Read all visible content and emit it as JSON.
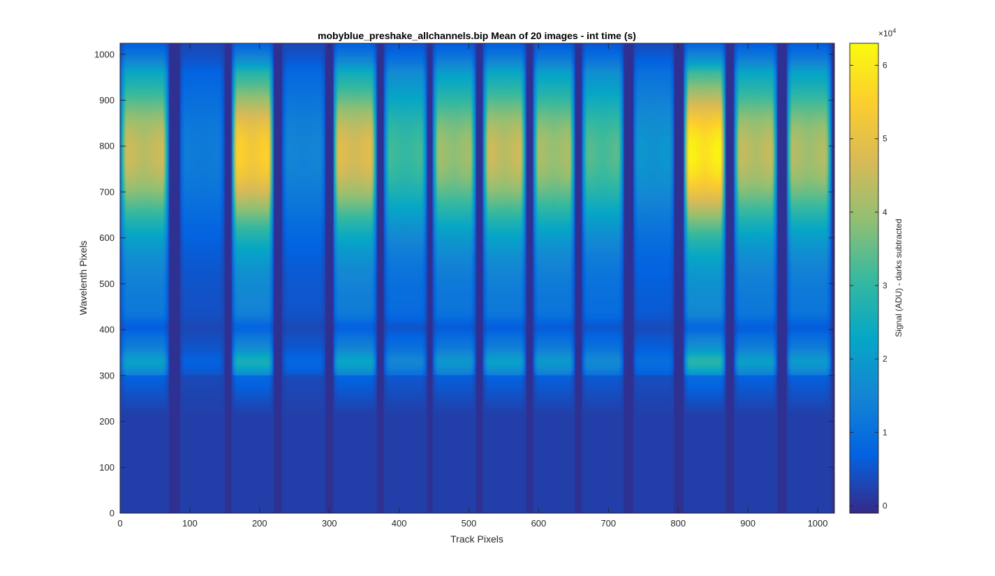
{
  "chart_data": {
    "type": "heatmap",
    "title": "mobyblue_preshake_allchannels.bip  Mean of 20 images - int time (s)",
    "xlabel": "Track Pixels",
    "ylabel": "Wavelenth Pixels",
    "xlim": [
      0,
      1024
    ],
    "ylim": [
      0,
      1024
    ],
    "xticks": [
      0,
      100,
      200,
      300,
      400,
      500,
      600,
      700,
      800,
      900,
      1000
    ],
    "yticks": [
      0,
      100,
      200,
      300,
      400,
      500,
      600,
      700,
      800,
      900,
      1000
    ],
    "colorbar": {
      "label": "Signal (ADU) - darks subtracted",
      "exponent_label": "×10",
      "exponent": "4",
      "range": [
        -1000,
        63000
      ],
      "ticks": [
        0,
        1,
        2,
        3,
        4,
        5,
        6
      ],
      "colormap": "parula"
    },
    "channels": [
      {
        "x_start": 0,
        "x_end": 70,
        "peak": 46000
      },
      {
        "x_start": 85,
        "x_end": 150,
        "peak": 13000
      },
      {
        "x_start": 160,
        "x_end": 220,
        "peak": 56000
      },
      {
        "x_start": 232,
        "x_end": 295,
        "peak": 15000
      },
      {
        "x_start": 305,
        "x_end": 368,
        "peak": 49000
      },
      {
        "x_start": 378,
        "x_end": 440,
        "peak": 32000
      },
      {
        "x_start": 448,
        "x_end": 510,
        "peak": 41000
      },
      {
        "x_start": 520,
        "x_end": 582,
        "peak": 46000
      },
      {
        "x_start": 592,
        "x_end": 652,
        "peak": 42000
      },
      {
        "x_start": 662,
        "x_end": 722,
        "peak": 34000
      },
      {
        "x_start": 735,
        "x_end": 795,
        "peak": 19000
      },
      {
        "x_start": 808,
        "x_end": 868,
        "peak": 62000
      },
      {
        "x_start": 880,
        "x_end": 942,
        "peak": 45000
      },
      {
        "x_start": 955,
        "x_end": 1020,
        "peak": 43000
      }
    ],
    "background_level": 0
  }
}
